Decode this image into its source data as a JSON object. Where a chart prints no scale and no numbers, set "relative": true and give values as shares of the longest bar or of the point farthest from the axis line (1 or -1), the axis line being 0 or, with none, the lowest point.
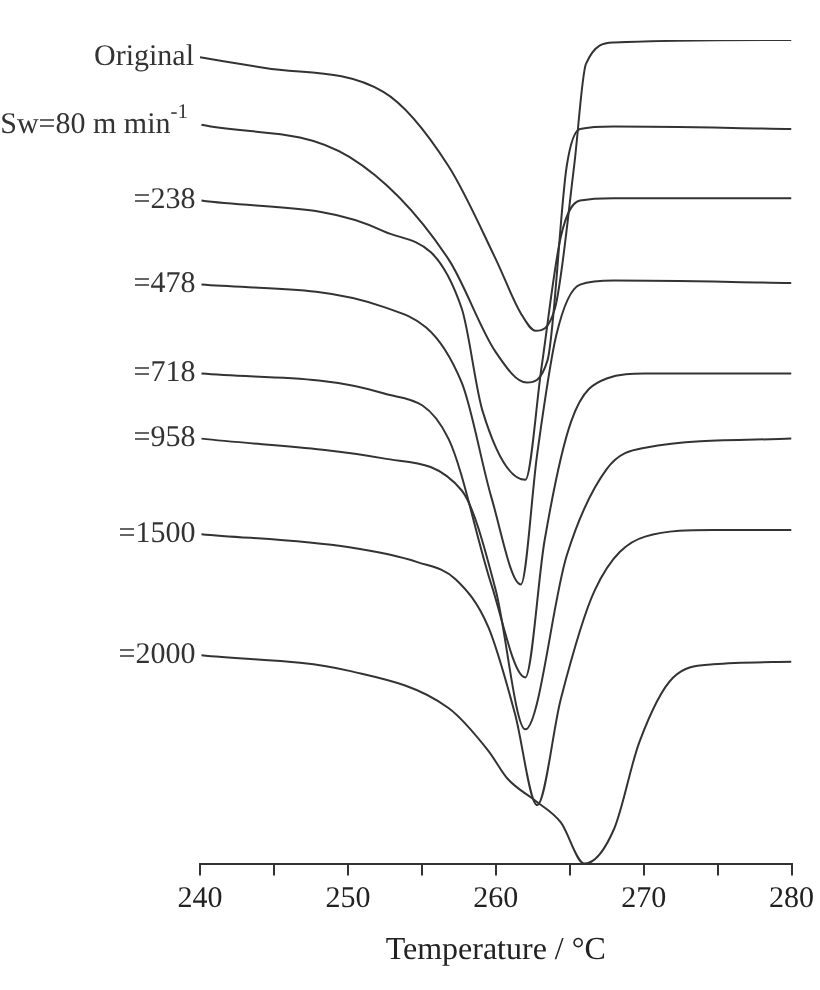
{
  "chart_data": {
    "type": "line",
    "relative": true,
    "xlabel": "Temperature / °C",
    "xlim": [
      240,
      280
    ],
    "xticks": [
      240,
      {
        "value": 245,
        "label": null
      },
      250,
      {
        "value": 255,
        "label": null
      },
      260,
      {
        "value": 265,
        "label": null
      },
      270,
      {
        "value": 275,
        "label": null
      },
      280
    ],
    "legend": false,
    "grid": false,
    "marker": "none",
    "line_style": "solid",
    "series": [
      {
        "name": "Original",
        "color": "#333333",
        "x": [
          240,
          244.4,
          252.4,
          256.8,
          260,
          261.7,
          262.7,
          264,
          265.3,
          266.1,
          268,
          280
        ],
        "values": [
          0.979,
          0.966,
          0.937,
          0.847,
          0.734,
          0.668,
          0.647,
          0.674,
          0.847,
          0.971,
          0.997,
          1.0
        ]
      },
      {
        "name": "Sw=80 m min$^{-1}$",
        "color": "#333333",
        "x": [
          240.1,
          250.1,
          256.8,
          260,
          262.1,
          263.5,
          264.8,
          265.7,
          268,
          280
        ],
        "values": [
          0.897,
          0.858,
          0.734,
          0.621,
          0.584,
          0.611,
          0.847,
          0.892,
          0.895,
          0.892
        ]
      },
      {
        "name": "=238",
        "color": "#333333",
        "x": [
          240.1,
          252.4,
          257.7,
          259.1,
          262,
          263.1,
          264.4,
          265.7,
          268,
          280
        ],
        "values": [
          0.805,
          0.768,
          0.674,
          0.55,
          0.466,
          0.603,
          0.761,
          0.805,
          0.808,
          0.808
        ]
      },
      {
        "name": "=478",
        "color": "#333333",
        "x": [
          240.1,
          252.4,
          257.7,
          259.7,
          261.7,
          262.8,
          264.1,
          265.7,
          268,
          280
        ],
        "values": [
          0.703,
          0.676,
          0.584,
          0.445,
          0.339,
          0.497,
          0.642,
          0.703,
          0.708,
          0.705
        ]
      },
      {
        "name": "=718",
        "color": "#333333",
        "x": [
          240.1,
          252.4,
          256.8,
          259.7,
          262,
          263.3,
          265.1,
          267.5,
          270.1,
          280
        ],
        "values": [
          0.595,
          0.571,
          0.516,
          0.339,
          0.226,
          0.392,
          0.537,
          0.589,
          0.595,
          0.595
        ]
      },
      {
        "name": "=958",
        "color": "#333333",
        "x": [
          240.1,
          252.4,
          257.7,
          260,
          262,
          264.8,
          267.5,
          270.1,
          280
        ],
        "values": [
          0.516,
          0.492,
          0.453,
          0.332,
          0.163,
          0.374,
          0.479,
          0.505,
          0.516
        ]
      },
      {
        "name": "=1500",
        "color": "#333333",
        "x": [
          240.1,
          250.1,
          254.7,
          257.3,
          259.5,
          261.3,
          262.8,
          264.4,
          266.7,
          270.1,
          274.7,
          280
        ],
        "values": [
          0.4,
          0.384,
          0.366,
          0.345,
          0.287,
          0.182,
          0.071,
          0.2,
          0.332,
          0.397,
          0.405,
          0.405
        ]
      },
      {
        "name": "=2000",
        "color": "#333333",
        "x": [
          240.1,
          250.1,
          256.8,
          259.5,
          260.8,
          262.7,
          264.4,
          266,
          268,
          269.7,
          272,
          274.7,
          280
        ],
        "values": [
          0.253,
          0.234,
          0.189,
          0.137,
          0.103,
          0.076,
          0.05,
          0,
          0.042,
          0.147,
          0.226,
          0.242,
          0.245
        ]
      }
    ]
  }
}
